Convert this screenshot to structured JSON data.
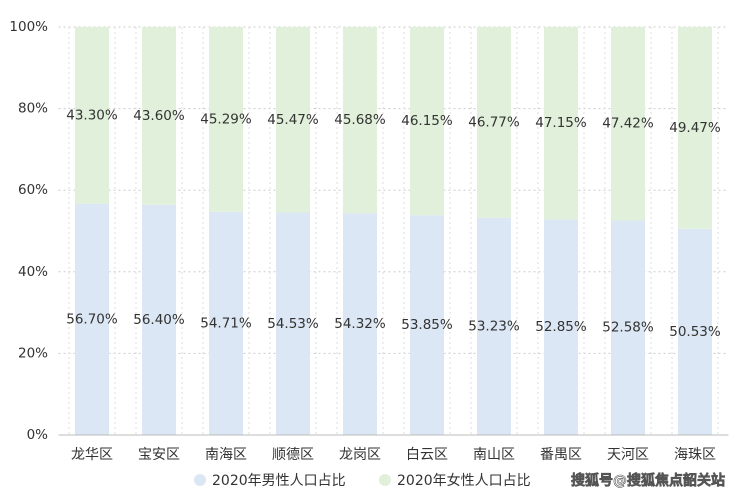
{
  "chart_data": {
    "type": "stacked_bar",
    "categories": [
      "龙华区",
      "宝安区",
      "南海区",
      "顺德区",
      "龙岗区",
      "白云区",
      "南山区",
      "番禺区",
      "天河区",
      "海珠区"
    ],
    "series": [
      {
        "name": "2020年男性人口占比",
        "color": "#dbe7f4",
        "values": [
          56.7,
          56.4,
          54.71,
          54.53,
          54.32,
          53.85,
          53.23,
          52.85,
          52.58,
          50.53
        ],
        "value_labels": [
          "56.70%",
          "56.40%",
          "54.71%",
          "54.53%",
          "54.32%",
          "53.85%",
          "53.23%",
          "52.85%",
          "52.58%",
          "50.53%"
        ]
      },
      {
        "name": "2020年女性人口占比",
        "color": "#e1f0da",
        "values": [
          43.3,
          43.6,
          45.29,
          45.47,
          45.68,
          46.15,
          46.77,
          47.15,
          47.42,
          49.47
        ],
        "value_labels": [
          "43.30%",
          "43.60%",
          "45.29%",
          "45.47%",
          "45.68%",
          "46.15%",
          "46.77%",
          "47.15%",
          "47.42%",
          "49.47%"
        ]
      }
    ],
    "ylim": [
      0,
      100
    ],
    "yticks": [
      {
        "value": 0,
        "label": "0%"
      },
      {
        "value": 20,
        "label": "20%"
      },
      {
        "value": 40,
        "label": "40%"
      },
      {
        "value": 60,
        "label": "60%"
      },
      {
        "value": 80,
        "label": "80%"
      },
      {
        "value": 100,
        "label": "100%"
      }
    ],
    "grid": true,
    "watermark": "搜狐号@搜狐焦点韶关站"
  }
}
